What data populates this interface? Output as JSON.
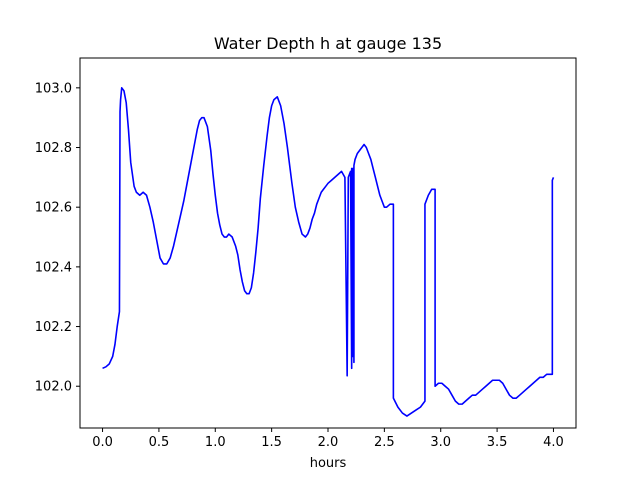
{
  "chart_data": {
    "type": "line",
    "title": "Water Depth h at gauge 135",
    "xlabel": "hours",
    "ylabel": "",
    "xlim": [
      -0.2,
      4.2
    ],
    "ylim": [
      101.86,
      103.1
    ],
    "grid": false,
    "legend": "none",
    "x_ticks": [
      0.0,
      0.5,
      1.0,
      1.5,
      2.0,
      2.5,
      3.0,
      3.5,
      4.0
    ],
    "x_tick_labels": [
      "0.0",
      "0.5",
      "1.0",
      "1.5",
      "2.0",
      "2.5",
      "3.0",
      "3.5",
      "4.0"
    ],
    "y_ticks": [
      102.0,
      102.2,
      102.4,
      102.6,
      102.8,
      103.0
    ],
    "y_tick_labels": [
      "102.0",
      "102.2",
      "102.4",
      "102.6",
      "102.8",
      "103.0"
    ],
    "series": [
      {
        "color": "#0000ff",
        "x": [
          0.0,
          0.03,
          0.06,
          0.09,
          0.11,
          0.13,
          0.15,
          0.155,
          0.16,
          0.17,
          0.19,
          0.21,
          0.23,
          0.25,
          0.28,
          0.3,
          0.33,
          0.36,
          0.39,
          0.42,
          0.45,
          0.48,
          0.51,
          0.54,
          0.57,
          0.6,
          0.63,
          0.66,
          0.69,
          0.72,
          0.75,
          0.78,
          0.81,
          0.84,
          0.86,
          0.88,
          0.9,
          0.93,
          0.96,
          0.98,
          1.0,
          1.02,
          1.04,
          1.06,
          1.08,
          1.1,
          1.12,
          1.15,
          1.18,
          1.2,
          1.22,
          1.24,
          1.26,
          1.28,
          1.3,
          1.32,
          1.34,
          1.36,
          1.38,
          1.4,
          1.43,
          1.46,
          1.48,
          1.5,
          1.52,
          1.55,
          1.58,
          1.61,
          1.64,
          1.66,
          1.68,
          1.71,
          1.74,
          1.77,
          1.8,
          1.82,
          1.84,
          1.86,
          1.88,
          1.9,
          1.92,
          1.94,
          1.96,
          1.98,
          2.0,
          2.03,
          2.06,
          2.09,
          2.12,
          2.15,
          2.17,
          2.18,
          2.18,
          2.19,
          2.2,
          2.21,
          2.21,
          2.22,
          2.22,
          2.23,
          2.23,
          2.24,
          2.26,
          2.28,
          2.3,
          2.32,
          2.34,
          2.36,
          2.38,
          2.4,
          2.42,
          2.44,
          2.46,
          2.48,
          2.5,
          2.52,
          2.55,
          2.58,
          2.58,
          2.62,
          2.66,
          2.7,
          2.74,
          2.78,
          2.82,
          2.86,
          2.86,
          2.89,
          2.92,
          2.95,
          2.95,
          2.98,
          3.01,
          3.04,
          3.07,
          3.1,
          3.13,
          3.16,
          3.19,
          3.22,
          3.25,
          3.28,
          3.31,
          3.34,
          3.37,
          3.4,
          3.43,
          3.46,
          3.49,
          3.52,
          3.55,
          3.58,
          3.61,
          3.64,
          3.67,
          3.7,
          3.73,
          3.76,
          3.79,
          3.82,
          3.85,
          3.88,
          3.91,
          3.94,
          3.97,
          3.99,
          3.99,
          4.0
        ],
        "y": [
          102.06,
          102.065,
          102.075,
          102.1,
          102.14,
          102.2,
          102.25,
          102.92,
          102.96,
          103.0,
          102.99,
          102.95,
          102.86,
          102.75,
          102.67,
          102.65,
          102.64,
          102.65,
          102.64,
          102.6,
          102.55,
          102.49,
          102.43,
          102.41,
          102.41,
          102.43,
          102.47,
          102.52,
          102.57,
          102.62,
          102.68,
          102.74,
          102.8,
          102.86,
          102.89,
          102.9,
          102.9,
          102.87,
          102.79,
          102.71,
          102.64,
          102.58,
          102.54,
          102.51,
          102.5,
          102.5,
          102.51,
          102.5,
          102.47,
          102.44,
          102.39,
          102.35,
          102.32,
          102.31,
          102.31,
          102.33,
          102.38,
          102.45,
          102.53,
          102.63,
          102.74,
          102.84,
          102.9,
          102.94,
          102.96,
          102.97,
          102.94,
          102.88,
          102.8,
          102.74,
          102.68,
          102.6,
          102.55,
          102.51,
          102.5,
          102.51,
          102.53,
          102.56,
          102.58,
          102.61,
          102.63,
          102.65,
          102.66,
          102.67,
          102.68,
          102.69,
          102.7,
          102.71,
          102.72,
          102.7,
          102.035,
          102.69,
          102.7,
          102.71,
          102.72,
          102.06,
          102.73,
          102.1,
          102.73,
          102.08,
          102.74,
          102.76,
          102.78,
          102.79,
          102.8,
          102.81,
          102.8,
          102.78,
          102.76,
          102.73,
          102.7,
          102.67,
          102.64,
          102.62,
          102.6,
          102.6,
          102.61,
          102.61,
          101.96,
          101.93,
          101.91,
          101.9,
          101.91,
          101.92,
          101.93,
          101.95,
          102.61,
          102.64,
          102.66,
          102.66,
          102.0,
          102.01,
          102.01,
          102.0,
          101.99,
          101.97,
          101.95,
          101.94,
          101.94,
          101.95,
          101.96,
          101.97,
          101.97,
          101.98,
          101.99,
          102.0,
          102.01,
          102.02,
          102.02,
          102.02,
          102.01,
          101.99,
          101.97,
          101.96,
          101.96,
          101.97,
          101.98,
          101.99,
          102.0,
          102.01,
          102.02,
          102.03,
          102.03,
          102.04,
          102.04,
          102.04,
          102.69,
          102.7
        ]
      }
    ]
  }
}
